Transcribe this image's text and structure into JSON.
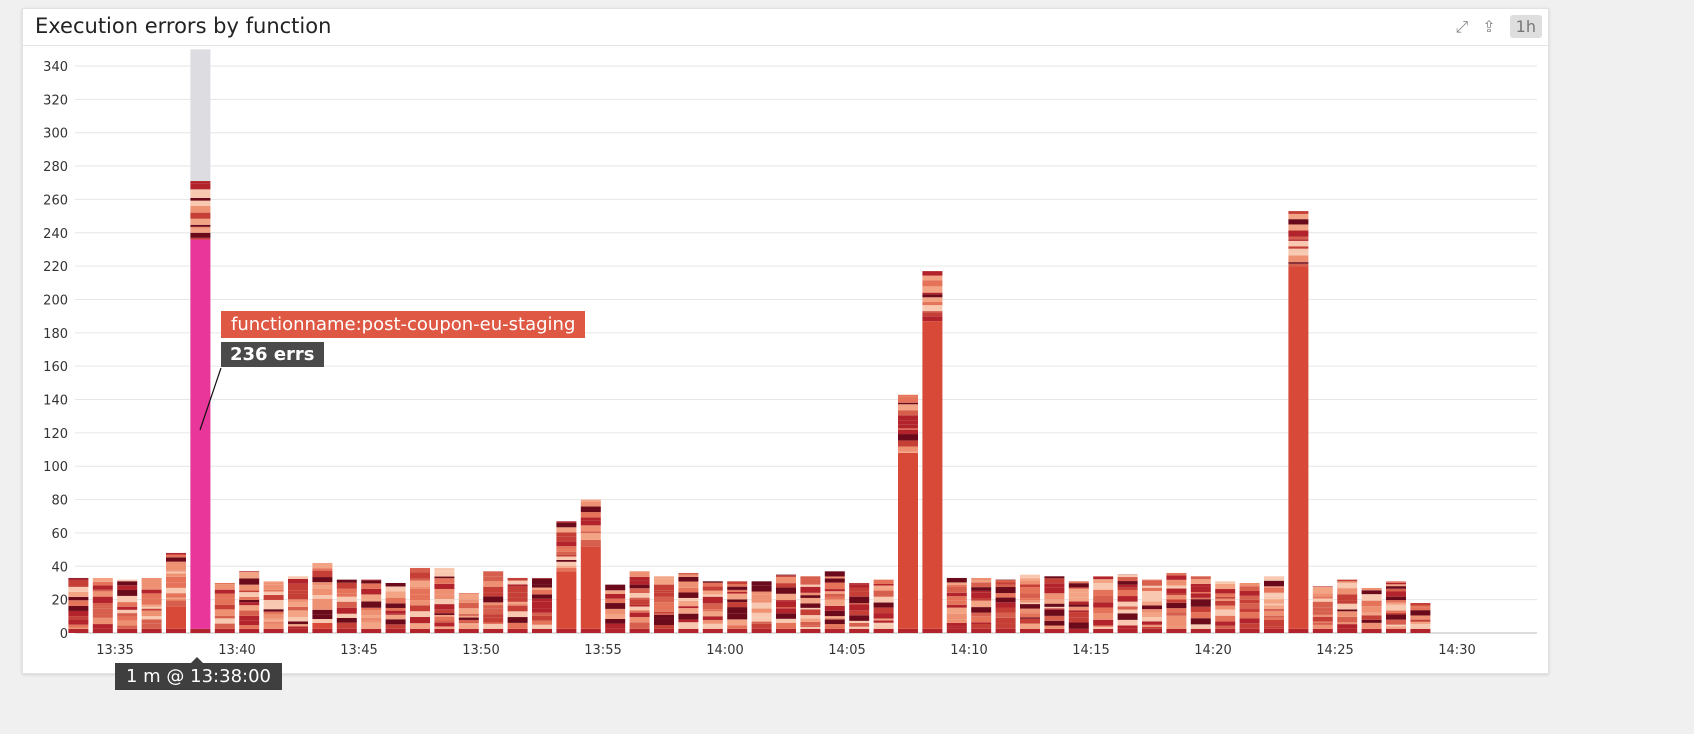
{
  "widget": {
    "title": "Execution errors by function",
    "range_label": "1h",
    "icons": [
      "expand-icon",
      "share-icon"
    ]
  },
  "tooltip": {
    "series_label": "functionname:post-coupon-eu-staging",
    "value_label": "236 errs",
    "time_label": "1 m @ 13:38:00"
  },
  "chart_data": {
    "type": "bar",
    "stacked": true,
    "title": "Execution errors by function",
    "ylim": [
      0,
      350
    ],
    "yticks": [
      0,
      20,
      40,
      60,
      80,
      100,
      120,
      140,
      160,
      180,
      200,
      220,
      240,
      260,
      280,
      300,
      320,
      340
    ],
    "xtick_labels": [
      "13:35",
      "13:40",
      "13:45",
      "13:50",
      "13:55",
      "14:00",
      "14:05",
      "14:10",
      "14:15",
      "14:20",
      "14:25",
      "14:30"
    ],
    "grid": true,
    "interval": "1 m",
    "categories": [
      "13:33",
      "13:34",
      "13:35",
      "13:36",
      "13:37",
      "13:38",
      "13:39",
      "13:40",
      "13:41",
      "13:42",
      "13:43",
      "13:44",
      "13:45",
      "13:46",
      "13:47",
      "13:48",
      "13:49",
      "13:50",
      "13:51",
      "13:52",
      "13:53",
      "13:54",
      "13:55",
      "13:56",
      "13:57",
      "13:58",
      "13:59",
      "14:00",
      "14:01",
      "14:02",
      "14:03",
      "14:04",
      "14:05",
      "14:06",
      "14:07",
      "14:08",
      "14:09",
      "14:10",
      "14:11",
      "14:12",
      "14:13",
      "14:14",
      "14:15",
      "14:16",
      "14:17",
      "14:18",
      "14:19",
      "14:20",
      "14:21",
      "14:22",
      "14:23",
      "14:24",
      "14:25",
      "14:26",
      "14:27",
      "14:28"
    ],
    "totals": [
      33,
      33,
      32,
      33,
      48,
      271,
      30,
      37,
      31,
      34,
      42,
      32,
      32,
      30,
      39,
      39,
      24,
      37,
      33,
      33,
      67,
      80,
      29,
      37,
      34,
      36,
      31,
      31,
      31,
      35,
      34,
      37,
      30,
      32,
      143,
      217,
      33,
      33,
      32,
      35,
      34,
      31,
      34,
      35,
      32,
      36,
      34,
      31,
      30,
      34,
      253,
      28,
      32,
      27,
      31,
      18
    ],
    "dominant_series": [
      0,
      0,
      0,
      0,
      16,
      236,
      0,
      0,
      0,
      0,
      6,
      0,
      0,
      0,
      0,
      0,
      0,
      0,
      0,
      0,
      37,
      52,
      0,
      0,
      0,
      0,
      0,
      0,
      0,
      0,
      0,
      0,
      0,
      0,
      108,
      187,
      0,
      0,
      0,
      0,
      0,
      0,
      0,
      0,
      0,
      0,
      0,
      0,
      0,
      0,
      220,
      0,
      0,
      0,
      0,
      0
    ],
    "highlighted": {
      "category": "13:38",
      "series": "functionname:post-coupon-eu-staging",
      "value": 236
    },
    "colors": {
      "highlight": "#e8369a",
      "hover_column": "#dddce1",
      "dominant": "#d84a37",
      "palette": [
        "#f3a484",
        "#e5735a",
        "#d6604d",
        "#f8c9b0",
        "#b2232b",
        "#6b0a1a",
        "#c53f36",
        "#ee9173"
      ]
    }
  }
}
